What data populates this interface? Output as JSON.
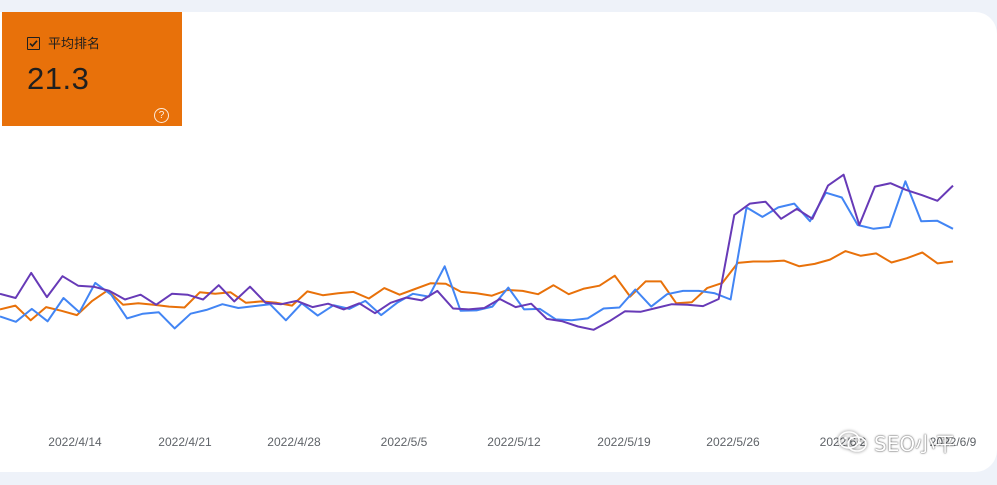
{
  "metric": {
    "label": "平均排名",
    "value": "21.3",
    "checked": true,
    "color": "#e8710a",
    "help_icon": "help-circle-icon"
  },
  "watermark": {
    "text": "SEO小平",
    "icon": "wechat-icon"
  },
  "chart_data": {
    "type": "line",
    "title": "",
    "xlabel": "",
    "ylabel": "",
    "x_tick_labels": [
      "2022/4/14",
      "2022/4/21",
      "2022/4/28",
      "2022/5/5",
      "2022/5/12",
      "2022/5/19",
      "2022/5/26",
      "2022/6/2",
      "2022/6/9"
    ],
    "y_axis_shown": false,
    "grid": false,
    "legend": "none",
    "series": [
      {
        "color": "#e8710a",
        "values": [
          15.5,
          16.3,
          13.2,
          16.0,
          15.2,
          14.3,
          17.3,
          19.5,
          16.5,
          16.8,
          16.5,
          16.1,
          15.9,
          19.1,
          18.8,
          19.1,
          16.9,
          17.2,
          16.9,
          16.3,
          19.3,
          18.5,
          18.9,
          19.2,
          17.8,
          20.0,
          18.6,
          19.8,
          21.0,
          20.9,
          19.2,
          18.9,
          18.4,
          19.6,
          19.4,
          18.7,
          20.6,
          18.7,
          19.9,
          20.5,
          22.6,
          18.2,
          21.4,
          21.4,
          16.8,
          17.0,
          20.0,
          21.1,
          25.3,
          25.6,
          25.6,
          25.8,
          24.6,
          25.1,
          26.0,
          27.8,
          26.8,
          27.3,
          25.4,
          26.3,
          27.5,
          25.2,
          25.6
        ]
      },
      {
        "color": "#4285f4",
        "values": [
          14.0,
          12.9,
          15.6,
          13.0,
          17.9,
          14.9,
          21.1,
          18.6,
          13.6,
          14.6,
          14.9,
          11.5,
          14.6,
          15.4,
          16.6,
          15.8,
          16.2,
          16.6,
          13.2,
          16.8,
          14.2,
          16.4,
          15.6,
          17.3,
          14.3,
          16.9,
          18.8,
          18.2,
          24.6,
          15.2,
          15.3,
          16.1,
          20.1,
          15.5,
          15.6,
          13.4,
          13.2,
          13.6,
          15.7,
          15.9,
          19.7,
          16.1,
          18.7,
          19.4,
          19.4,
          18.9,
          17.6,
          37.0,
          35.0,
          37.0,
          37.8,
          34.1,
          40.1,
          39.1,
          33.3,
          32.5,
          32.9,
          42.5,
          34.1,
          34.2,
          32.5
        ]
      },
      {
        "color": "#673ab7",
        "values": [
          18.8,
          17.9,
          23.2,
          18.1,
          22.5,
          20.5,
          20.3,
          19.4,
          17.6,
          18.6,
          16.5,
          18.8,
          18.6,
          17.6,
          20.6,
          17.2,
          20.3,
          16.9,
          16.6,
          17.3,
          16.0,
          16.7,
          15.5,
          16.8,
          14.7,
          16.9,
          18.0,
          17.4,
          19.4,
          15.7,
          15.5,
          15.8,
          17.7,
          16.0,
          16.7,
          13.5,
          13.0,
          11.9,
          11.2,
          13.0,
          15.1,
          15.0,
          15.8,
          16.6,
          16.5,
          16.2,
          17.7,
          35.4,
          37.8,
          38.2,
          34.6,
          36.7,
          34.6,
          41.6,
          43.9,
          33.3,
          41.4,
          42.1,
          40.7,
          39.6,
          38.4,
          41.6
        ]
      }
    ]
  }
}
